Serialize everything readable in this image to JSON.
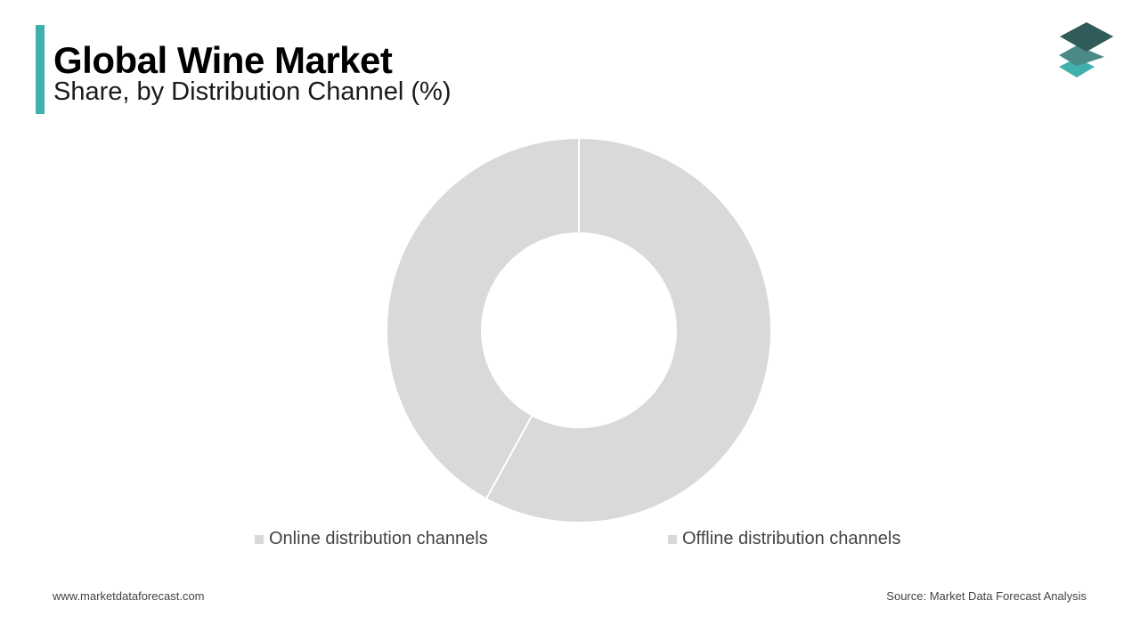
{
  "header": {
    "title": "Global Wine Market",
    "subtitle": "Share, by Distribution Channel  (%)"
  },
  "colors": {
    "accent": "#3fb0ac",
    "slice": "#d9d9d9",
    "logo_top": "#2f5c58",
    "logo_mid": "#4a8a86",
    "logo_bottom": "#3fb0ac"
  },
  "chart_data": {
    "type": "pie",
    "title": "Global Wine Market",
    "subtitle": "Share, by Distribution Channel  (%)",
    "donut": true,
    "categories": [
      "Online distribution channels",
      "Offline distribution channels"
    ],
    "values": [
      58,
      42
    ],
    "legend_position": "bottom"
  },
  "footer": {
    "website": "www.marketdataforecast.com",
    "source": "Source: Market Data Forecast Analysis"
  }
}
